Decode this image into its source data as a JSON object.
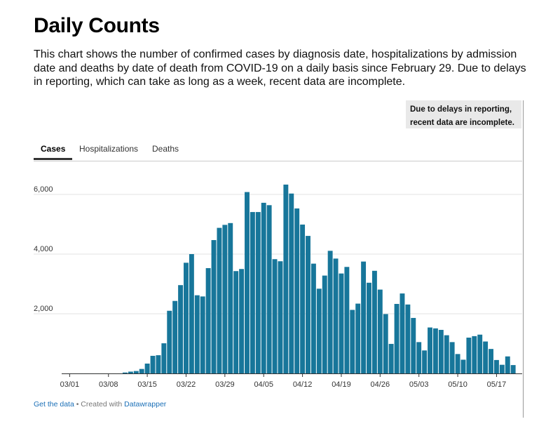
{
  "header": {
    "title": "Daily Counts",
    "description": "This chart shows the number of confirmed cases by diagnosis date, hospitalizations by admission date and deaths by date of death from COVID-19 on a daily basis since February 29. Due to delays in reporting, which can take as long as a week, recent data are incomplete."
  },
  "note": {
    "line1": "Due to delays in reporting,",
    "line2": "recent data are incomplete."
  },
  "tabs": [
    {
      "label": "Cases",
      "active": true
    },
    {
      "label": "Hospitalizations",
      "active": false
    },
    {
      "label": "Deaths",
      "active": false
    }
  ],
  "footer": {
    "get_data": "Get the data",
    "separator": " • Created with ",
    "datawrapper": "Datawrapper"
  },
  "colors": {
    "bar": "#17769a",
    "grid": "#e3e3e3",
    "axis": "#333333"
  },
  "chart_data": {
    "type": "bar",
    "series_name": "Cases",
    "start_date": "2020-02-29",
    "values": [
      0,
      1,
      1,
      1,
      1,
      1,
      1,
      1,
      1,
      1,
      1,
      30,
      60,
      80,
      150,
      330,
      590,
      610,
      1010,
      2100,
      2430,
      2960,
      3710,
      4000,
      2620,
      2580,
      3530,
      4470,
      4880,
      4980,
      5040,
      3430,
      3500,
      6080,
      5410,
      5410,
      5720,
      5640,
      3830,
      3760,
      6330,
      6030,
      5530,
      4990,
      4610,
      3680,
      2840,
      3280,
      4110,
      3850,
      3350,
      3570,
      2130,
      2340,
      3750,
      3040,
      3440,
      2810,
      1990,
      990,
      2330,
      2680,
      2310,
      1860,
      1050,
      770,
      1540,
      1510,
      1460,
      1280,
      1050,
      650,
      460,
      1200,
      1250,
      1300,
      1070,
      820,
      450,
      290,
      570,
      280
    ],
    "x_tick_labels": [
      "03/01",
      "03/08",
      "03/15",
      "03/22",
      "03/29",
      "04/05",
      "04/12",
      "04/19",
      "04/26",
      "05/03",
      "05/10",
      "05/17"
    ],
    "y_tick_labels": [
      "2,000",
      "4,000",
      "6,000"
    ],
    "y_ticks": [
      2000,
      4000,
      6000
    ],
    "ylim": [
      0,
      6700
    ]
  }
}
